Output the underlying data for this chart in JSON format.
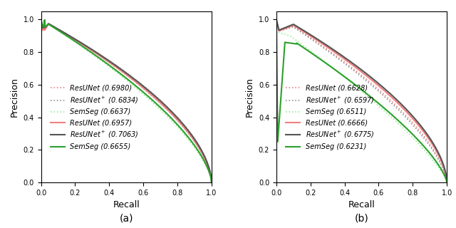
{
  "panel_a": {
    "title": "(a)",
    "xlabel": "Recall",
    "ylabel": "Precision",
    "xlim": [
      0,
      1.0
    ],
    "ylim": [
      0,
      1.05
    ],
    "legend_entries": [
      {
        "label": "ResUNet (0.6980)",
        "color": "#f08080",
        "linestyle": "dotted",
        "linewidth": 1.2
      },
      {
        "label": "ResUNet$^+$ (0.6834)",
        "color": "#909090",
        "linestyle": "dotted",
        "linewidth": 1.2
      },
      {
        "label": "SemSeg (0.6637)",
        "color": "#90ee90",
        "linestyle": "dotted",
        "linewidth": 1.2
      },
      {
        "label": "ResUNet (0.6957)",
        "color": "#f08080",
        "linestyle": "solid",
        "linewidth": 1.5
      },
      {
        "label": "ResUNet$^+$ (0.7063)",
        "color": "#555555",
        "linestyle": "solid",
        "linewidth": 1.5
      },
      {
        "label": "SemSeg (0.6655)",
        "color": "#2ca02c",
        "linestyle": "solid",
        "linewidth": 1.5
      }
    ]
  },
  "panel_b": {
    "title": "(b)",
    "xlabel": "Recall",
    "ylabel": "Precision",
    "xlim": [
      0,
      1.0
    ],
    "ylim": [
      0,
      1.05
    ],
    "legend_entries": [
      {
        "label": "ResUNet (0.6628)",
        "color": "#f08080",
        "linestyle": "dotted",
        "linewidth": 1.2
      },
      {
        "label": "ResUNet$^+$ (0.6597)",
        "color": "#909090",
        "linestyle": "dotted",
        "linewidth": 1.2
      },
      {
        "label": "SemSeg (0.6511)",
        "color": "#90ee90",
        "linestyle": "dotted",
        "linewidth": 1.2
      },
      {
        "label": "ResUNet (0.6666)",
        "color": "#f08080",
        "linestyle": "solid",
        "linewidth": 1.5
      },
      {
        "label": "ResUNet$^+$ (0.6775)",
        "color": "#555555",
        "linestyle": "solid",
        "linewidth": 1.5
      },
      {
        "label": "SemSeg (0.6231)",
        "color": "#2ca02c",
        "linestyle": "solid",
        "linewidth": 1.5
      }
    ]
  },
  "font_size_legend": 7.0,
  "font_size_label": 9,
  "font_size_tick": 7,
  "font_size_title": 10,
  "colors": {
    "red_light": "#f08080",
    "gray_light": "#909090",
    "green_light": "#90ee90",
    "red_solid": "#f08080",
    "gray_solid": "#555555",
    "green_solid": "#2ca02c"
  }
}
